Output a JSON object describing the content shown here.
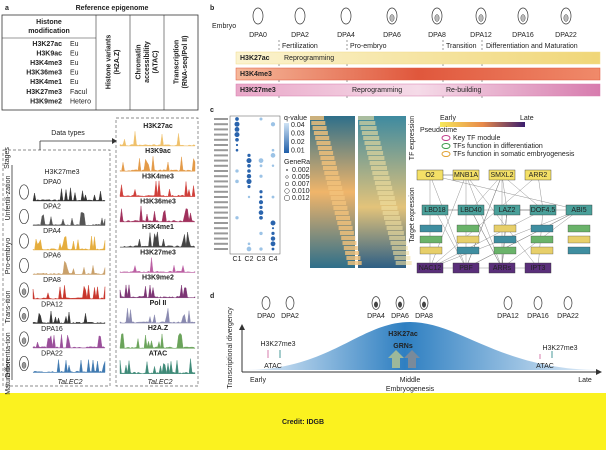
{
  "credit": "Credit: IDGB",
  "panel_a": {
    "letter": "a",
    "title": "Reference epigenome",
    "histone_header": [
      "Histone",
      "modification"
    ],
    "marks": [
      {
        "name": "H3K27ac",
        "type": "Eu",
        "color": "#e8b35a"
      },
      {
        "name": "H3K9ac",
        "type": "Eu",
        "color": "#d9953c"
      },
      {
        "name": "H3K4me3",
        "type": "Eu",
        "color": "#c8362c"
      },
      {
        "name": "H3K36me3",
        "type": "Eu",
        "color": "#a3324f"
      },
      {
        "name": "H3K4me1",
        "type": "Eu",
        "color": "#222222"
      },
      {
        "name": "H3K27me3",
        "type": "Facul",
        "color": "#c267a8"
      },
      {
        "name": "H3K9me2",
        "type": "Hetero",
        "color": "#7e2f6e"
      }
    ],
    "columns": [
      {
        "lines": [
          "Histone variants",
          "(H2A.Z)"
        ],
        "color": "#6aa35a"
      },
      {
        "lines": [
          "Chromatin",
          "accessibility",
          "(ATAC)"
        ],
        "color": "#2e6b55"
      },
      {
        "lines": [
          "Transcription",
          "(RNA-seq/Pol II)"
        ],
        "color": "#5d7f9c"
      }
    ],
    "data_types": "Data types",
    "stages_label": "Stages",
    "track_title": "H3K27me3",
    "stages": [
      {
        "name": "DPA0",
        "color": "#333333"
      },
      {
        "name": "DPA2",
        "color": "#555555"
      },
      {
        "name": "DPA4",
        "color": "#e5ad3d"
      },
      {
        "name": "DPA6",
        "color": "#c9a06a"
      },
      {
        "name": "DPA8",
        "color": "#c8362c"
      },
      {
        "name": "DPA12",
        "color": "#333333"
      },
      {
        "name": "DPA16",
        "color": "#9a4f9a"
      },
      {
        "name": "DPA22",
        "color": "#3f79b0"
      }
    ],
    "groups": [
      "Unfertili-zation",
      "Pro-embryo",
      "Trans-ition",
      "Differentia-tion",
      "Matura-tion"
    ],
    "right_tracks": [
      {
        "name": "H3K27ac",
        "color": "#efc06a"
      },
      {
        "name": "H3K9ac",
        "color": "#e39a48"
      },
      {
        "name": "H3K4me3",
        "color": "#cf3f3a"
      },
      {
        "name": "H3K36me3",
        "color": "#a0305c"
      },
      {
        "name": "H3K4me1",
        "color": "#444444"
      },
      {
        "name": "H3K27me3",
        "color": "#bb5fa3"
      },
      {
        "name": "H3K9me2",
        "color": "#7c3574"
      },
      {
        "name": "Pol II",
        "color": "#8a8ab0"
      },
      {
        "name": "H2A.Z",
        "color": "#6aa35a"
      },
      {
        "name": "ATAC",
        "color": "#3f8a78"
      }
    ],
    "gene": "TaLEC2"
  },
  "panel_b": {
    "letter": "b",
    "embryo": "Embryo",
    "stages": [
      "DPA0",
      "DPA2",
      "DPA4",
      "DPA6",
      "DPA8",
      "DPA12",
      "DPA16",
      "DPA22"
    ],
    "phases": [
      "Fertilization",
      "Pro-embryo",
      "Transition",
      "Differentiation and Maturation"
    ],
    "rows": [
      {
        "name": "H3K27ac",
        "color": "#f2dc8a",
        "notes": [
          "Reprogramming"
        ]
      },
      {
        "name": "H3K4me3",
        "color": "#e0573c",
        "notes": []
      },
      {
        "name": "H3K27me3",
        "color": "#d77cae",
        "notes": [
          "Reprogramming",
          "Re-building"
        ]
      }
    ]
  },
  "panel_c": {
    "letter": "c",
    "clusters": [
      "C1",
      "C2",
      "C3",
      "C4"
    ],
    "qvalue_title": "q-value",
    "qvalue_ticks": [
      "0.04",
      "0.03",
      "0.02",
      "0.01"
    ],
    "generatio_title": "GeneRatio",
    "generatio_ticks": [
      "0.0025",
      "0.0050",
      "0.0075",
      "0.0100",
      "0.0125"
    ],
    "pseudotime": "Pseudotime",
    "early": "Early",
    "late": "Late",
    "tf_expression": "TF expression",
    "target_expression": "Target expression",
    "legend": [
      "Key TF module",
      "TFs function in differentiation",
      "TFs function in somatic embryogenesis"
    ],
    "nodes": [
      "O2",
      "MNB1A",
      "SMXL2",
      "ARR2",
      "LBD18",
      "LBD40",
      "LAZ2",
      "DOF4.5",
      "ABI5",
      "NAC12",
      "PBF",
      "ARRs",
      "IPT3"
    ]
  },
  "panel_d": {
    "letter": "d",
    "stages": [
      "DPA0",
      "DPA2",
      "DPA4",
      "DPA6",
      "DPA8",
      "DPA12",
      "DPA16",
      "DPA22"
    ],
    "y_label": "Transcriptional divergency",
    "x_label": "Embryogenesis",
    "x_points": [
      "Early",
      "Middle",
      "Late"
    ],
    "early_marks": [
      "H3K27me3",
      "ATAC"
    ],
    "middle_marks": [
      "H3K27ac",
      "GRNs"
    ],
    "late_marks": [
      "H3K27me3",
      "ATAC"
    ]
  }
}
